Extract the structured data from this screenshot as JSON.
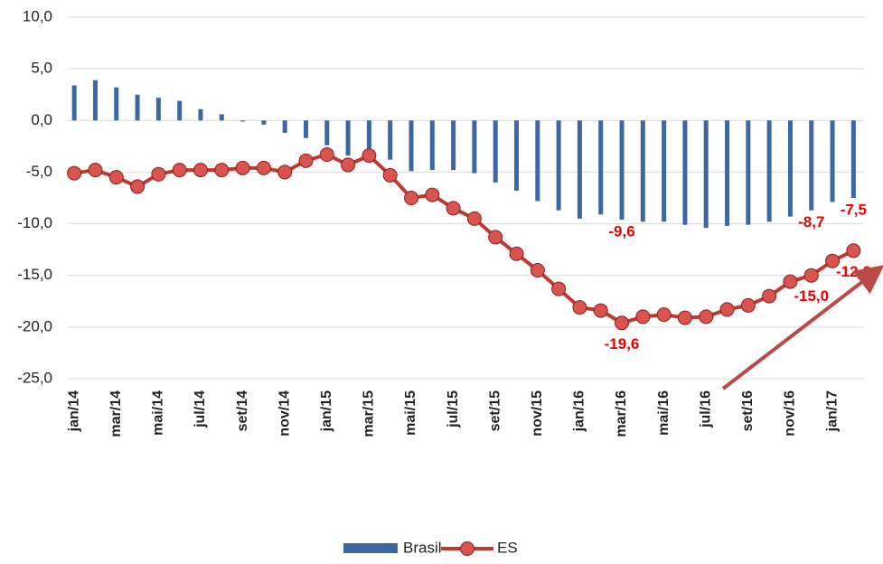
{
  "chart_data": {
    "type": "bar-line",
    "categories": [
      "jan/14",
      null,
      "mar/14",
      null,
      "mai/14",
      null,
      "jul/14",
      null,
      "set/14",
      null,
      "nov/14",
      null,
      "jan/15",
      null,
      "mar/15",
      null,
      "mai/15",
      null,
      "jul/15",
      null,
      "set/15",
      null,
      "nov/15",
      null,
      "jan/16",
      null,
      "mar/16",
      null,
      "mai/16",
      null,
      "jul/16",
      null,
      "set/16",
      null,
      "nov/16",
      null,
      "jan/17",
      null
    ],
    "series": [
      {
        "name": "Brasil",
        "type": "bar",
        "color": "#3d67a3",
        "values": [
          3.4,
          3.9,
          3.2,
          2.5,
          2.2,
          1.9,
          1.1,
          0.6,
          -0.1,
          -0.4,
          -1.2,
          -1.7,
          -2.4,
          -3.4,
          -3.6,
          -3.8,
          -4.9,
          -4.8,
          -4.8,
          -5.1,
          -6.0,
          -6.8,
          -7.8,
          -8.7,
          -9.5,
          -9.1,
          -9.6,
          -9.8,
          -9.8,
          -10.1,
          -10.4,
          -10.2,
          -10.1,
          -9.8,
          -9.3,
          -8.7,
          -7.9,
          -7.5
        ],
        "value_labels": [
          null,
          null,
          null,
          null,
          null,
          null,
          null,
          null,
          null,
          null,
          null,
          null,
          null,
          null,
          null,
          null,
          null,
          null,
          null,
          null,
          null,
          null,
          null,
          null,
          null,
          null,
          "-9,6",
          null,
          null,
          null,
          null,
          null,
          null,
          null,
          null,
          "-8,7",
          null,
          "-7,5"
        ]
      },
      {
        "name": "ES",
        "type": "line",
        "color": "#c0392b",
        "values": [
          -5.1,
          -4.8,
          -5.5,
          -6.4,
          -5.2,
          -4.8,
          -4.8,
          -4.8,
          -4.6,
          -4.6,
          -5.0,
          -3.9,
          -3.3,
          -4.3,
          -3.4,
          -5.3,
          -7.5,
          -7.2,
          -8.5,
          -9.5,
          -11.3,
          -12.9,
          -14.5,
          -16.3,
          -18.1,
          -18.4,
          -19.6,
          -19.0,
          -18.8,
          -19.1,
          -19.0,
          -18.3,
          -17.9,
          -17.0,
          -15.6,
          -15.0,
          -13.6,
          -12.6
        ],
        "value_labels": [
          null,
          null,
          null,
          null,
          null,
          null,
          null,
          null,
          null,
          null,
          null,
          null,
          null,
          null,
          null,
          null,
          null,
          null,
          null,
          null,
          null,
          null,
          null,
          null,
          null,
          null,
          "-19,6",
          null,
          null,
          null,
          null,
          null,
          null,
          null,
          null,
          "-15,0",
          null,
          "-12,6"
        ]
      }
    ],
    "ylim": [
      -25,
      10
    ],
    "yticks": [
      {
        "value": -25,
        "label": "-25,0"
      },
      {
        "value": -20,
        "label": "-20,0"
      },
      {
        "value": -15,
        "label": "-15,0"
      },
      {
        "value": -10,
        "label": "-10,0"
      },
      {
        "value": -5,
        "label": "-5,0"
      },
      {
        "value": 0,
        "label": "0,0"
      },
      {
        "value": 5,
        "label": "5,0"
      },
      {
        "value": 10,
        "label": "10,0"
      }
    ],
    "grid": true,
    "legend": "bottom"
  }
}
